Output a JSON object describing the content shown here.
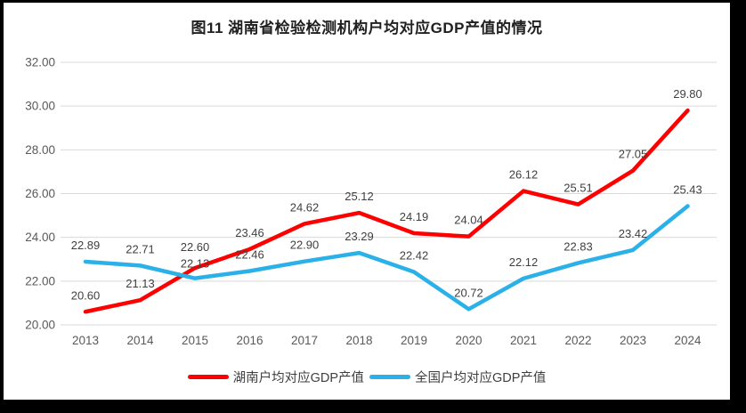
{
  "figure": {
    "caption_prefix": "图11",
    "frame_color": "#000000",
    "background_color": "#ffffff"
  },
  "chart_data": {
    "type": "line",
    "title": "图11  湖南省检验检测机构户均对应GDP产值的情况",
    "categories": [
      "2013",
      "2014",
      "2015",
      "2016",
      "2017",
      "2018",
      "2019",
      "2020",
      "2021",
      "2022",
      "2023",
      "2024"
    ],
    "series": [
      {
        "name": "湖南户均对应GDP产值",
        "color": "#FE0000",
        "values": [
          20.6,
          21.13,
          22.6,
          23.46,
          24.62,
          25.12,
          24.19,
          24.04,
          26.12,
          25.51,
          27.05,
          29.8
        ]
      },
      {
        "name": "全国户均对应GDP产值",
        "color": "#2BB0E8",
        "values": [
          22.89,
          22.71,
          22.13,
          22.46,
          22.9,
          23.29,
          22.42,
          20.72,
          22.12,
          22.83,
          23.42,
          25.43
        ]
      }
    ],
    "xlabel": "",
    "ylabel": "",
    "ylim": [
      20,
      32
    ],
    "yticks": [
      20,
      22,
      24,
      26,
      28,
      30,
      32
    ],
    "ytick_labels": [
      "20.00",
      "22.00",
      "24.00",
      "26.00",
      "28.00",
      "30.00",
      "32.00"
    ],
    "grid": true,
    "gridline_color": "#d9d9d9",
    "axis_text_color": "#595959",
    "data_label_color": "#3f3f3f",
    "data_labels": true,
    "legend_position": "bottom"
  }
}
